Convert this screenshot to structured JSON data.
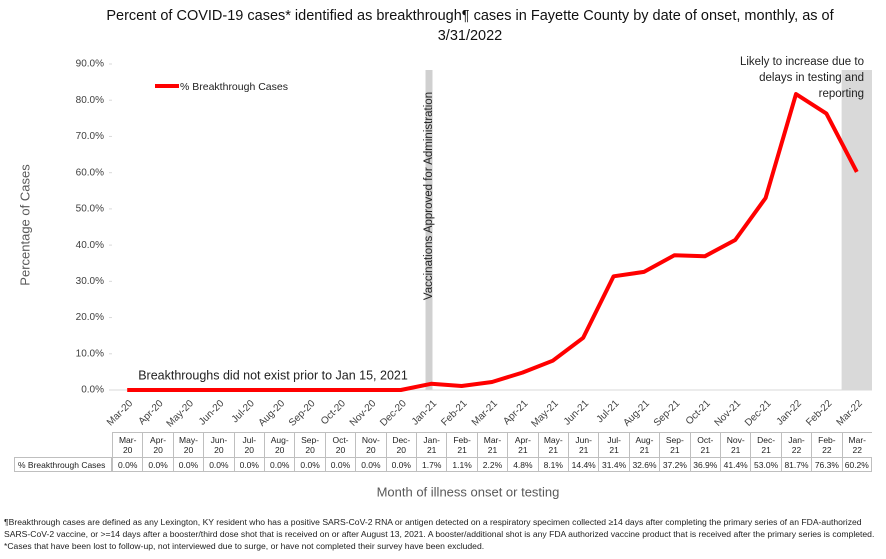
{
  "chart_data": {
    "type": "line",
    "title": "Percent of COVID-19 cases* identified as breakthrough¶ cases in Fayette County by date of onset, monthly, as of 3/31/2022",
    "ylabel": "Percentage of Cases",
    "xlabel": "Month of illness onset or testing",
    "annotations": [
      "Vaccinations Approved for Administration",
      "Breakthroughs did not exist prior to Jan 15, 2021",
      "Likely to increase due to delays in testing and reporting"
    ],
    "categories": [
      "Mar-20",
      "Apr-20",
      "May-20",
      "Jun-20",
      "Jul-20",
      "Aug-20",
      "Sep-20",
      "Oct-20",
      "Nov-20",
      "Dec-20",
      "Jan-21",
      "Feb-21",
      "Mar-21",
      "Apr-21",
      "May-21",
      "Jun-21",
      "Jul-21",
      "Aug-21",
      "Sep-21",
      "Oct-21",
      "Nov-21",
      "Dec-21",
      "Jan-22",
      "Feb-22",
      "Mar-22"
    ],
    "series": [
      {
        "name": "% Breakthrough Cases",
        "color": "#ff0000",
        "values": [
          0,
          0,
          0,
          0,
          0,
          0,
          0,
          0,
          0,
          0,
          1.7,
          1.1,
          2.2,
          4.8,
          8.1,
          14.4,
          31.4,
          32.6,
          37.2,
          36.9,
          41.4,
          53.0,
          81.7,
          76.3,
          60.2
        ],
        "value_labels": [
          "0.0%",
          "0.0%",
          "0.0%",
          "0.0%",
          "0.0%",
          "0.0%",
          "0.0%",
          "0.0%",
          "0.0%",
          "0.0%",
          "1.7%",
          "1.1%",
          "2.2%",
          "4.8%",
          "8.1%",
          "14.4%",
          "31.4%",
          "32.6%",
          "37.2%",
          "36.9%",
          "41.4%",
          "53.0%",
          "81.7%",
          "76.3%",
          "60.2%"
        ]
      }
    ],
    "ylim": [
      0,
      90
    ],
    "yticks": [
      {
        "value": 0,
        "label": "0.0%"
      },
      {
        "value": 10,
        "label": "10.0%"
      },
      {
        "value": 20,
        "label": "20.0%"
      },
      {
        "value": 30,
        "label": "30.0%"
      },
      {
        "value": 40,
        "label": "40.0%"
      },
      {
        "value": 50,
        "label": "50.0%"
      },
      {
        "value": 60,
        "label": "60.0%"
      },
      {
        "value": 70,
        "label": "70.0%"
      },
      {
        "value": 80,
        "label": "80.0%"
      },
      {
        "value": 90,
        "label": "90.0%"
      }
    ],
    "legend": "top-left",
    "footnote": "¶Breakthrough cases are defined as any Lexington, KY resident who has a positive SARS-CoV-2 RNA or antigen detected on a respiratory specimen collected ≥14 days after completing the primary series of an FDA-authorized SARS-CoV-2 vaccine, or >=14 days after a booster/third dose shot that is received on or after August 13, 2021.  A booster/additional shot is any FDA authorized vaccine product that is received after the primary series is completed. *Cases that have been lost to follow-up, not interviewed due to surge, or have not completed their survey have been excluded."
  }
}
